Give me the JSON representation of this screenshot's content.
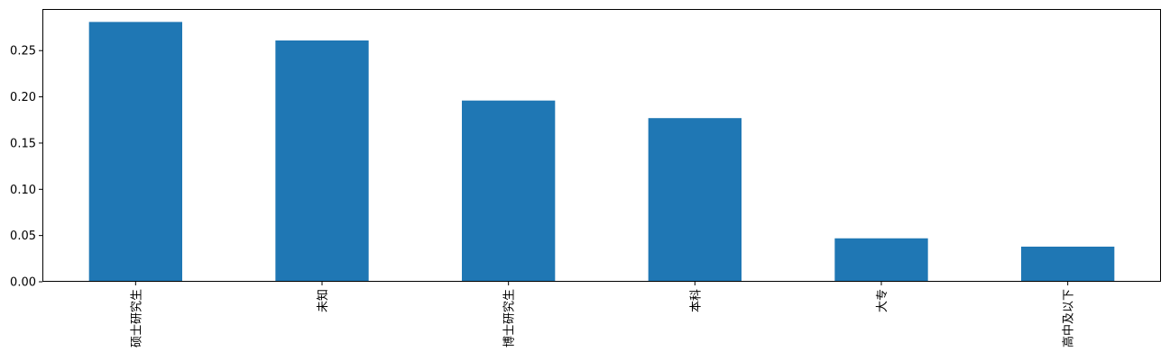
{
  "chart_data": {
    "type": "bar",
    "categories": [
      "硕士研究生",
      "未知",
      "博士研究生",
      "本科",
      "大专",
      "高中及以下"
    ],
    "values": [
      0.281,
      0.261,
      0.196,
      0.177,
      0.047,
      0.038
    ],
    "title": "",
    "xlabel": "",
    "ylabel": "",
    "ylim": [
      0,
      0.295
    ],
    "yticks": [
      "0.00",
      "0.05",
      "0.10",
      "0.15",
      "0.20",
      "0.25"
    ],
    "grid": false,
    "legend": "none",
    "bar_color": "#1f77b4",
    "axis_color": "#000000"
  }
}
